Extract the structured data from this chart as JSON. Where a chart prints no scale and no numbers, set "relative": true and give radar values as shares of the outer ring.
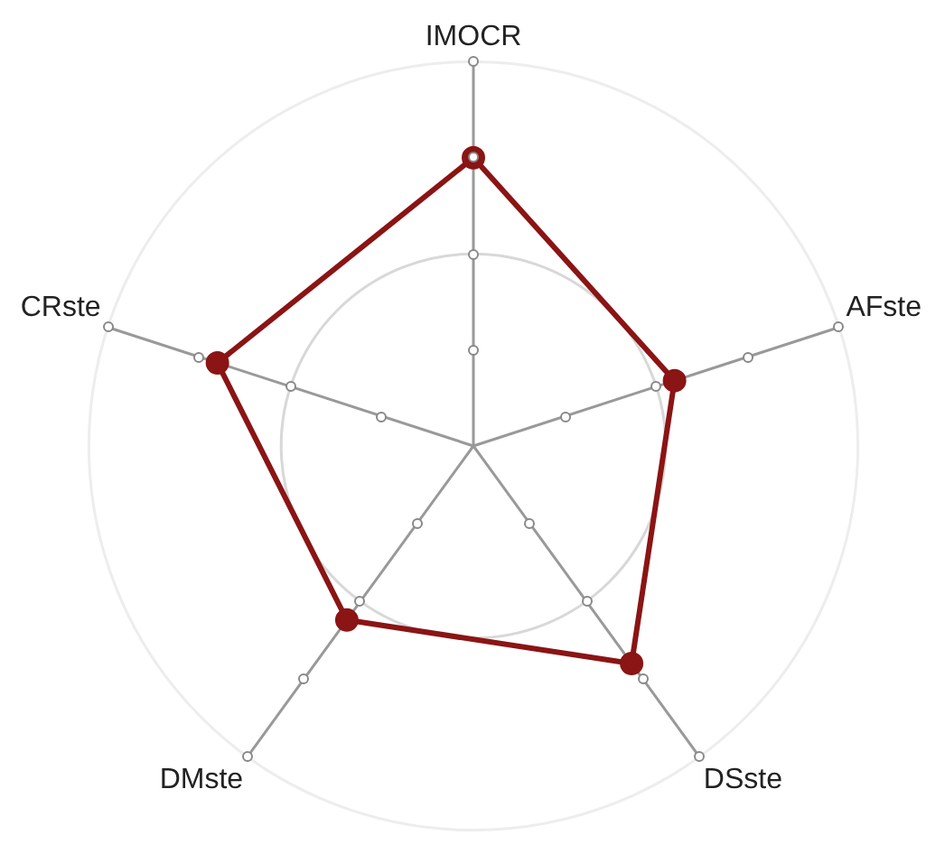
{
  "chart_data": {
    "type": "radar",
    "relative": true,
    "categories": [
      "IMOCR",
      "AFste",
      "DSste",
      "DMste",
      "CRste"
    ],
    "series": [
      {
        "color": "#8b1414",
        "values": [
          0.75,
          0.55,
          0.7,
          0.56,
          0.7
        ]
      }
    ],
    "marker": "circle",
    "grid": true,
    "legend": false
  }
}
